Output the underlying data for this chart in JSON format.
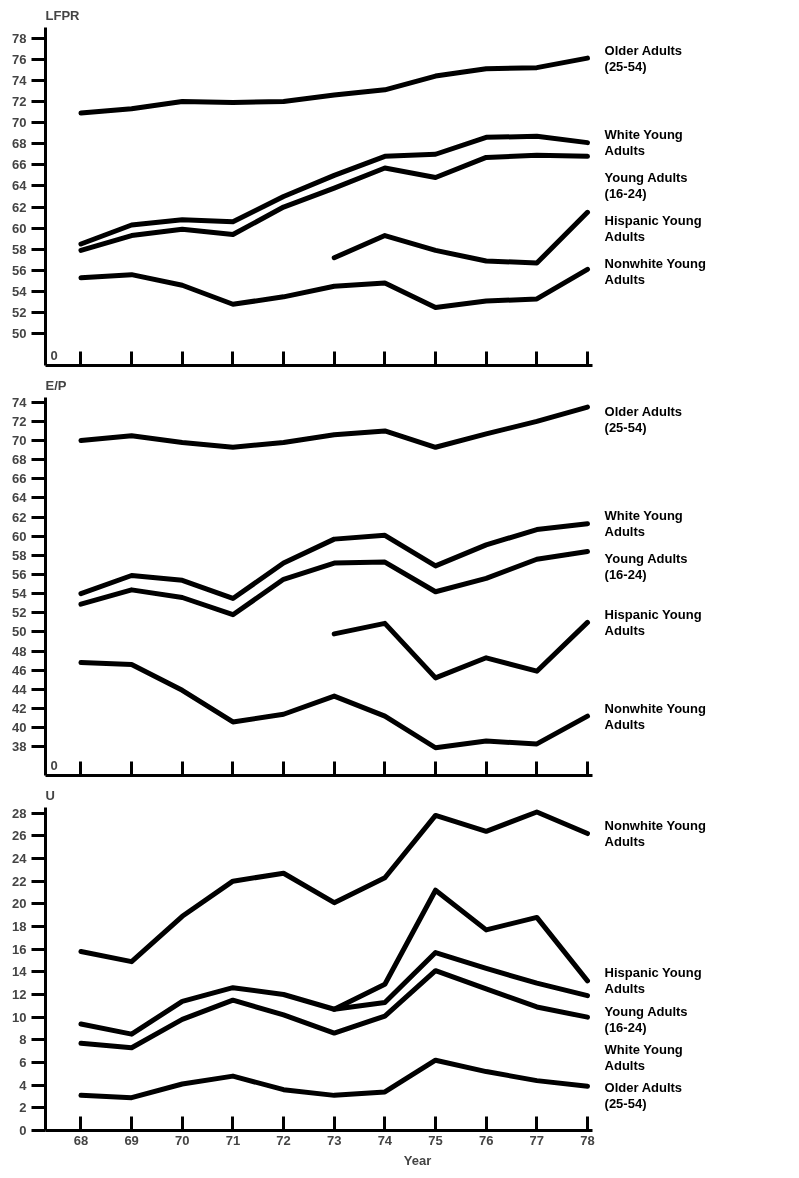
{
  "chart_data": [
    {
      "type": "line",
      "ylabel": "LFPR",
      "x": [
        68,
        69,
        70,
        71,
        72,
        73,
        74,
        75,
        76,
        77,
        78
      ],
      "xlim": [
        67.3,
        78.1
      ],
      "xticks": [
        68,
        69,
        70,
        71,
        72,
        73,
        74,
        75,
        76,
        77,
        78
      ],
      "ylim": [
        47,
        79
      ],
      "yticks": [
        50,
        52,
        54,
        56,
        58,
        60,
        62,
        64,
        66,
        68,
        70,
        72,
        74,
        76,
        78
      ],
      "annotations": [
        "0"
      ],
      "tick_labels": "y",
      "grid": false,
      "marker": "none",
      "line_style": "solid",
      "series": [
        {
          "name": "Older Adults (25-54)",
          "color": "#000000",
          "values": [
            70.9,
            71.3,
            72.0,
            71.9,
            72.0,
            72.6,
            73.1,
            74.4,
            75.1,
            75.2,
            76.1
          ]
        },
        {
          "name": "White Young Adults",
          "color": "#000000",
          "values": [
            58.5,
            60.3,
            60.8,
            60.6,
            63.0,
            65.0,
            66.8,
            67.0,
            68.6,
            68.7,
            68.1
          ]
        },
        {
          "name": "Young Adults (16-24)",
          "color": "#000000",
          "values": [
            57.9,
            59.3,
            59.9,
            59.4,
            62.0,
            63.8,
            65.7,
            64.8,
            66.7,
            66.9,
            66.8
          ]
        },
        {
          "name": "Hispanic Young Adults",
          "color": "#000000",
          "x": [
            73,
            74,
            75,
            76,
            77,
            78
          ],
          "values": [
            57.2,
            59.3,
            57.9,
            56.9,
            56.7,
            61.5
          ]
        },
        {
          "name": "Nonwhite Young Adults",
          "color": "#000000",
          "values": [
            55.3,
            55.6,
            54.6,
            52.8,
            53.5,
            54.5,
            54.8,
            52.5,
            53.1,
            53.3,
            56.1
          ]
        }
      ]
    },
    {
      "type": "line",
      "ylabel": "E/P",
      "x": [
        68,
        69,
        70,
        71,
        72,
        73,
        74,
        75,
        76,
        77,
        78
      ],
      "xlim": [
        67.3,
        78.1
      ],
      "xticks": [
        68,
        69,
        70,
        71,
        72,
        73,
        74,
        75,
        76,
        77,
        78
      ],
      "ylim": [
        35,
        74.5
      ],
      "yticks": [
        38,
        40,
        42,
        44,
        46,
        48,
        50,
        52,
        54,
        56,
        58,
        60,
        62,
        64,
        66,
        68,
        70,
        72,
        74
      ],
      "annotations": [
        "0"
      ],
      "tick_labels": "y",
      "grid": false,
      "marker": "none",
      "line_style": "solid",
      "series": [
        {
          "name": "Older Adults (25-54)",
          "color": "#000000",
          "values": [
            70.0,
            70.5,
            69.8,
            69.3,
            69.8,
            70.6,
            71.0,
            69.3,
            70.7,
            72.0,
            73.5
          ]
        },
        {
          "name": "White Young Adults",
          "color": "#000000",
          "values": [
            54.0,
            55.9,
            55.4,
            53.5,
            57.2,
            59.7,
            60.1,
            56.9,
            59.1,
            60.7,
            61.3
          ]
        },
        {
          "name": "Young Adults (16-24)",
          "color": "#000000",
          "values": [
            52.9,
            54.4,
            53.6,
            51.8,
            55.5,
            57.2,
            57.3,
            54.2,
            55.6,
            57.6,
            58.4
          ]
        },
        {
          "name": "Hispanic Young Adults",
          "color": "#000000",
          "x": [
            73,
            74,
            75,
            76,
            77,
            78
          ],
          "values": [
            49.8,
            50.9,
            45.2,
            47.3,
            45.9,
            51.0
          ]
        },
        {
          "name": "Nonwhite Young Adults",
          "color": "#000000",
          "values": [
            46.8,
            46.6,
            43.9,
            40.6,
            41.4,
            43.3,
            41.2,
            37.9,
            38.6,
            38.3,
            41.2
          ]
        }
      ]
    },
    {
      "type": "line",
      "ylabel": "U",
      "xlabel": "Year",
      "x": [
        68,
        69,
        70,
        71,
        72,
        73,
        74,
        75,
        76,
        77,
        78
      ],
      "xlim": [
        67.3,
        78.1
      ],
      "xticks": [
        68,
        69,
        70,
        71,
        72,
        73,
        74,
        75,
        76,
        77,
        78
      ],
      "ylim": [
        0,
        28.5
      ],
      "yticks": [
        0,
        2,
        4,
        6,
        8,
        10,
        12,
        14,
        16,
        18,
        20,
        22,
        24,
        26,
        28
      ],
      "grid": false,
      "marker": "none",
      "line_style": "solid",
      "series": [
        {
          "name": "Nonwhite Young Adults",
          "color": "#000000",
          "values": [
            15.8,
            14.9,
            18.9,
            22.0,
            22.7,
            20.1,
            22.3,
            27.8,
            26.4,
            28.1,
            26.2
          ]
        },
        {
          "name": "Hispanic Young Adults",
          "color": "#000000",
          "x": [
            73,
            74,
            75,
            76,
            77,
            78
          ],
          "values": [
            10.7,
            12.9,
            21.2,
            17.7,
            18.8,
            13.2
          ]
        },
        {
          "name": "Young Adults (16-24)",
          "color": "#000000",
          "values": [
            9.4,
            8.5,
            11.4,
            12.6,
            12.0,
            10.7,
            11.3,
            15.7,
            14.3,
            13.0,
            11.9
          ]
        },
        {
          "name": "White Young Adults",
          "color": "#000000",
          "values": [
            7.7,
            7.3,
            9.8,
            11.5,
            10.2,
            8.6,
            10.1,
            14.1,
            12.5,
            10.9,
            10.0
          ]
        },
        {
          "name": "Older Adults (25-54)",
          "color": "#000000",
          "values": [
            3.1,
            2.9,
            4.1,
            4.8,
            3.6,
            3.1,
            3.4,
            6.2,
            5.2,
            4.4,
            3.9
          ]
        }
      ]
    }
  ]
}
